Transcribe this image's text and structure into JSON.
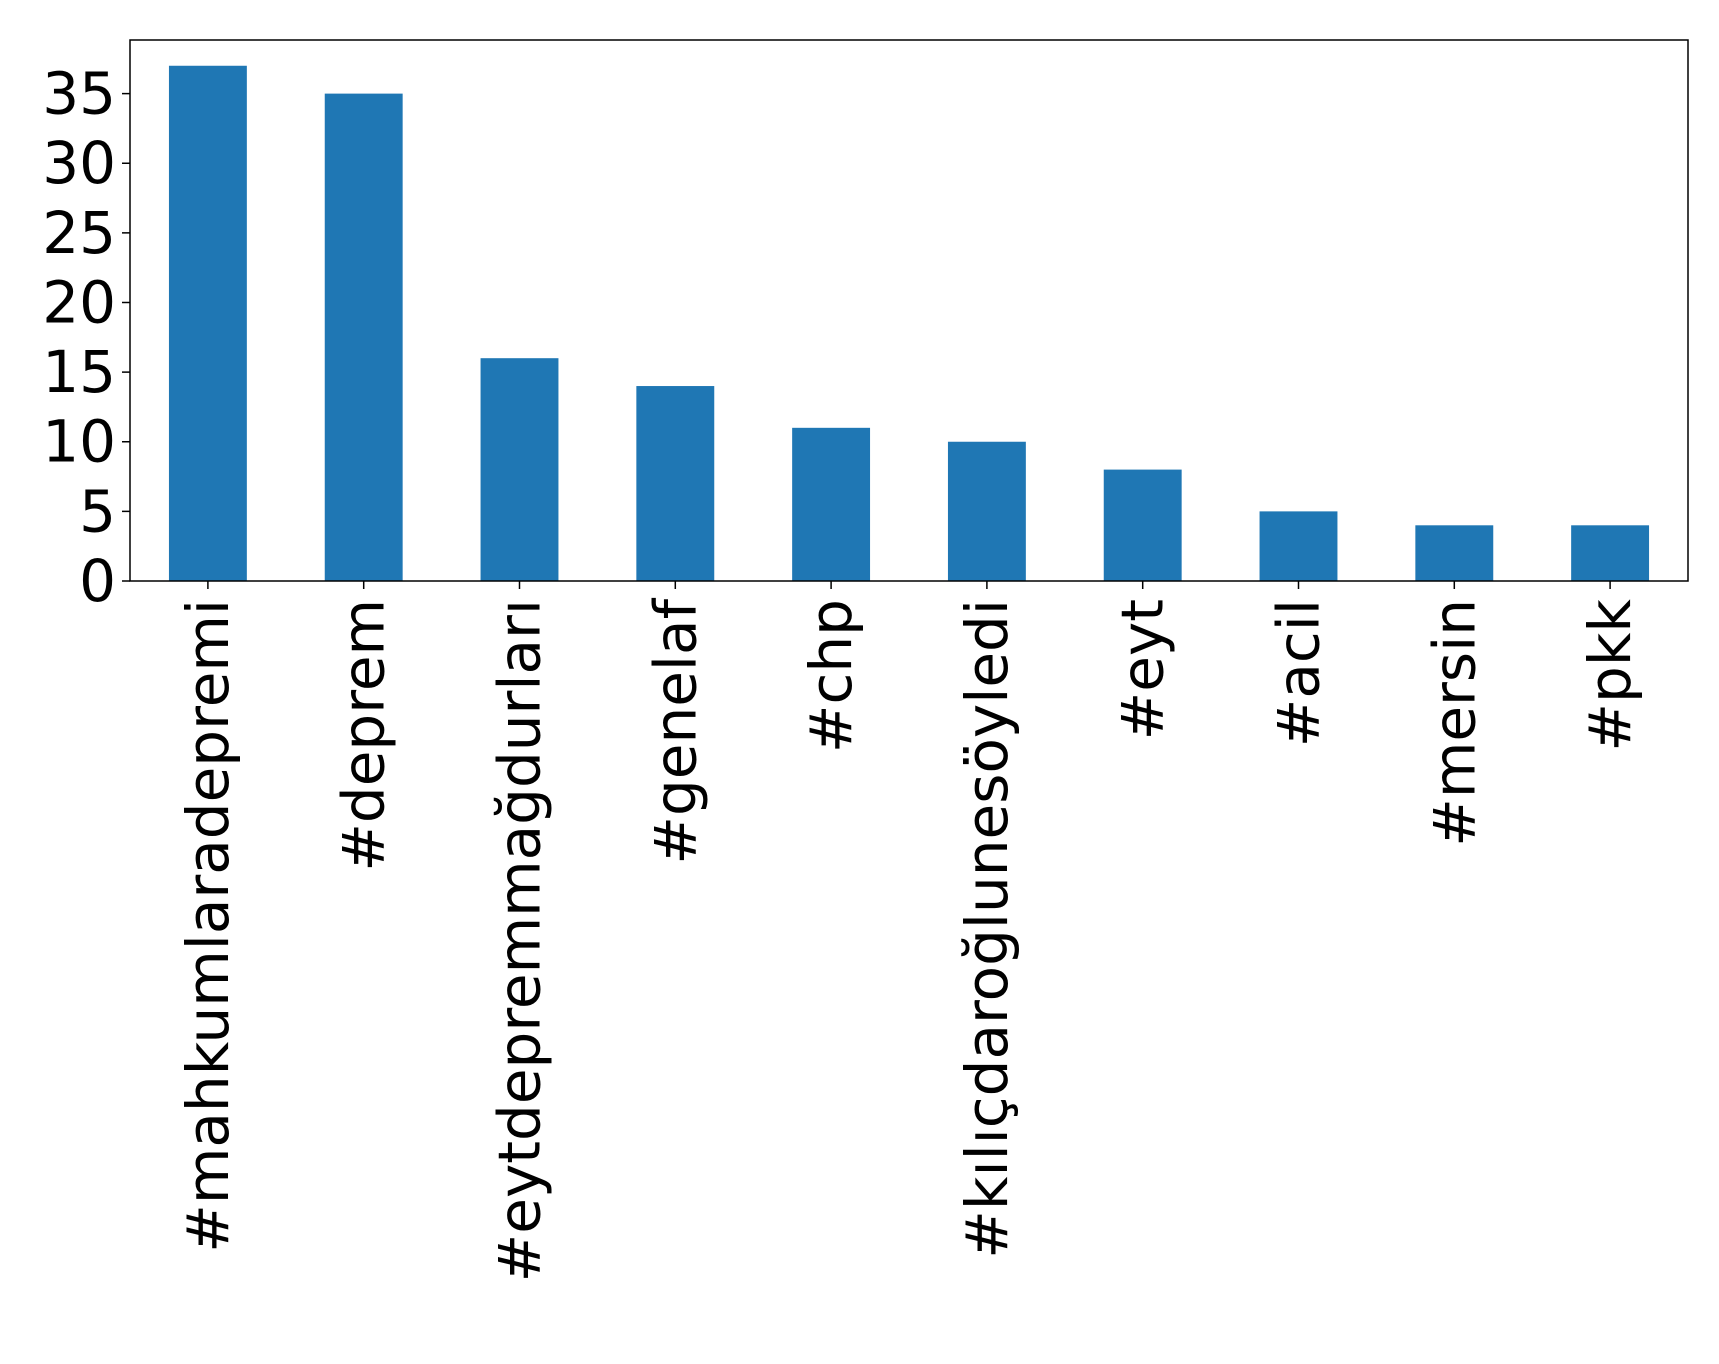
{
  "chart_data": {
    "type": "bar",
    "categories": [
      "#mahkumlaradepremi",
      "#deprem",
      "#eytdepremmağdurları",
      "#genelaf",
      "#chp",
      "#kılıçdaroğlunesöyledi",
      "#eyt",
      "#acil",
      "#mersin",
      "#pkk"
    ],
    "values": [
      37,
      35,
      16,
      14,
      11,
      10,
      8,
      5,
      4,
      4
    ],
    "title": "",
    "xlabel": "",
    "ylabel": "",
    "ylim": [
      0,
      38.85
    ],
    "yticks": [
      0,
      5,
      10,
      15,
      20,
      25,
      30,
      35
    ],
    "ytick_labels": [
      "0",
      "5",
      "10",
      "15",
      "20",
      "25",
      "30",
      "35"
    ],
    "grid": false,
    "bar_color": "#1f77b4"
  }
}
